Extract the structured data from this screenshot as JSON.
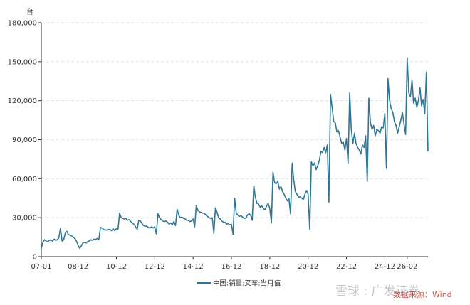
{
  "chart_data": {
    "type": "line",
    "title": "",
    "xlabel": "",
    "ylabel": "台",
    "ylim": [
      0,
      180000
    ],
    "y_ticks": [
      0,
      30000,
      60000,
      90000,
      120000,
      150000,
      180000
    ],
    "y_tick_labels": [
      "0",
      "30,000",
      "60,000",
      "90,000",
      "120,000",
      "150,000",
      "180,000"
    ],
    "x_ticks": [
      "07-01",
      "08-12",
      "10-12",
      "12-12",
      "14-12",
      "16-12",
      "18-12",
      "20-12",
      "22-12",
      "24-12",
      "26-02"
    ],
    "grid": "horizontal dashed",
    "legend_position": "bottom-center",
    "colors": {
      "series": "#2f7796",
      "grid": "#dddddd",
      "axis": "#333333",
      "source": "#c0504d"
    },
    "series": [
      {
        "name": "中国:销量:叉车:当月值",
        "x_start": "2007-01",
        "x_end": "2026-02",
        "values": [
          6500,
          11000,
          13000,
          12000,
          11500,
          12500,
          13000,
          12000,
          13500,
          12500,
          13000,
          14500,
          22000,
          12000,
          13000,
          18000,
          19500,
          17000,
          16500,
          16000,
          15000,
          14000,
          12000,
          9000,
          6500,
          8000,
          10500,
          11000,
          10500,
          11500,
          12000,
          13000,
          12500,
          13500,
          13000,
          14000,
          13000,
          22500,
          22000,
          21000,
          20500,
          20500,
          21000,
          21000,
          20000,
          21500,
          20000,
          21500,
          21000,
          33500,
          30000,
          29500,
          29000,
          29500,
          28000,
          28500,
          27000,
          26000,
          25000,
          23000,
          21000,
          28000,
          27500,
          25500,
          24000,
          23500,
          23500,
          22500,
          22000,
          23000,
          22000,
          23000,
          17500,
          33000,
          30000,
          28500,
          27500,
          27000,
          27500,
          26500,
          25000,
          26000,
          24500,
          27000,
          24000,
          36500,
          32000,
          30000,
          30500,
          29500,
          29000,
          28000,
          28000,
          27000,
          27500,
          29000,
          23000,
          39500,
          35500,
          34500,
          34000,
          33500,
          33500,
          32000,
          31000,
          30000,
          29500,
          30000,
          18000,
          37500,
          34000,
          30000,
          29000,
          27500,
          26500,
          26500,
          25000,
          25500,
          24500,
          25000,
          17000,
          45000,
          33500,
          32000,
          31000,
          31500,
          30500,
          29500,
          29500,
          32000,
          33000,
          32000,
          28000,
          54500,
          45500,
          41000,
          40500,
          38000,
          39000,
          37000,
          36000,
          39000,
          41000,
          37000,
          26000,
          65000,
          57000,
          56000,
          58000,
          52000,
          54000,
          50000,
          48000,
          45000,
          43000,
          44500,
          33000,
          72000,
          59000,
          50000,
          48000,
          46000,
          46000,
          45000,
          44000,
          48000,
          51000,
          48000,
          21000,
          73000,
          70000,
          72000,
          67000,
          70000,
          74000,
          81000,
          80000,
          84000,
          80000,
          86000,
          42000,
          125000,
          115000,
          104000,
          103000,
          96000,
          97000,
          92000,
          87000,
          88000,
          82000,
          91000,
          72000,
          126000,
          98000,
          87000,
          95000,
          87000,
          84000,
          82000,
          79000,
          86000,
          84000,
          93000,
          58000,
          122000,
          103000,
          98000,
          101000,
          93000,
          98000,
          97000,
          95000,
          100000,
          99000,
          110000,
          68000,
          137000,
          120000,
          114000,
          111000,
          104000,
          101000,
          95000,
          100000,
          105000,
          111000,
          102000,
          94000,
          153000,
          126000,
          123000,
          136000,
          118000,
          122000,
          115000,
          120000,
          130000,
          116000,
          121000,
          110000,
          142000,
          81000
        ]
      }
    ]
  },
  "legend": {
    "label": "中国:销量:叉车:当月值"
  },
  "source": {
    "text": "数据来源：Wind"
  },
  "watermark": {
    "text": "雪球 : 广发证券"
  }
}
